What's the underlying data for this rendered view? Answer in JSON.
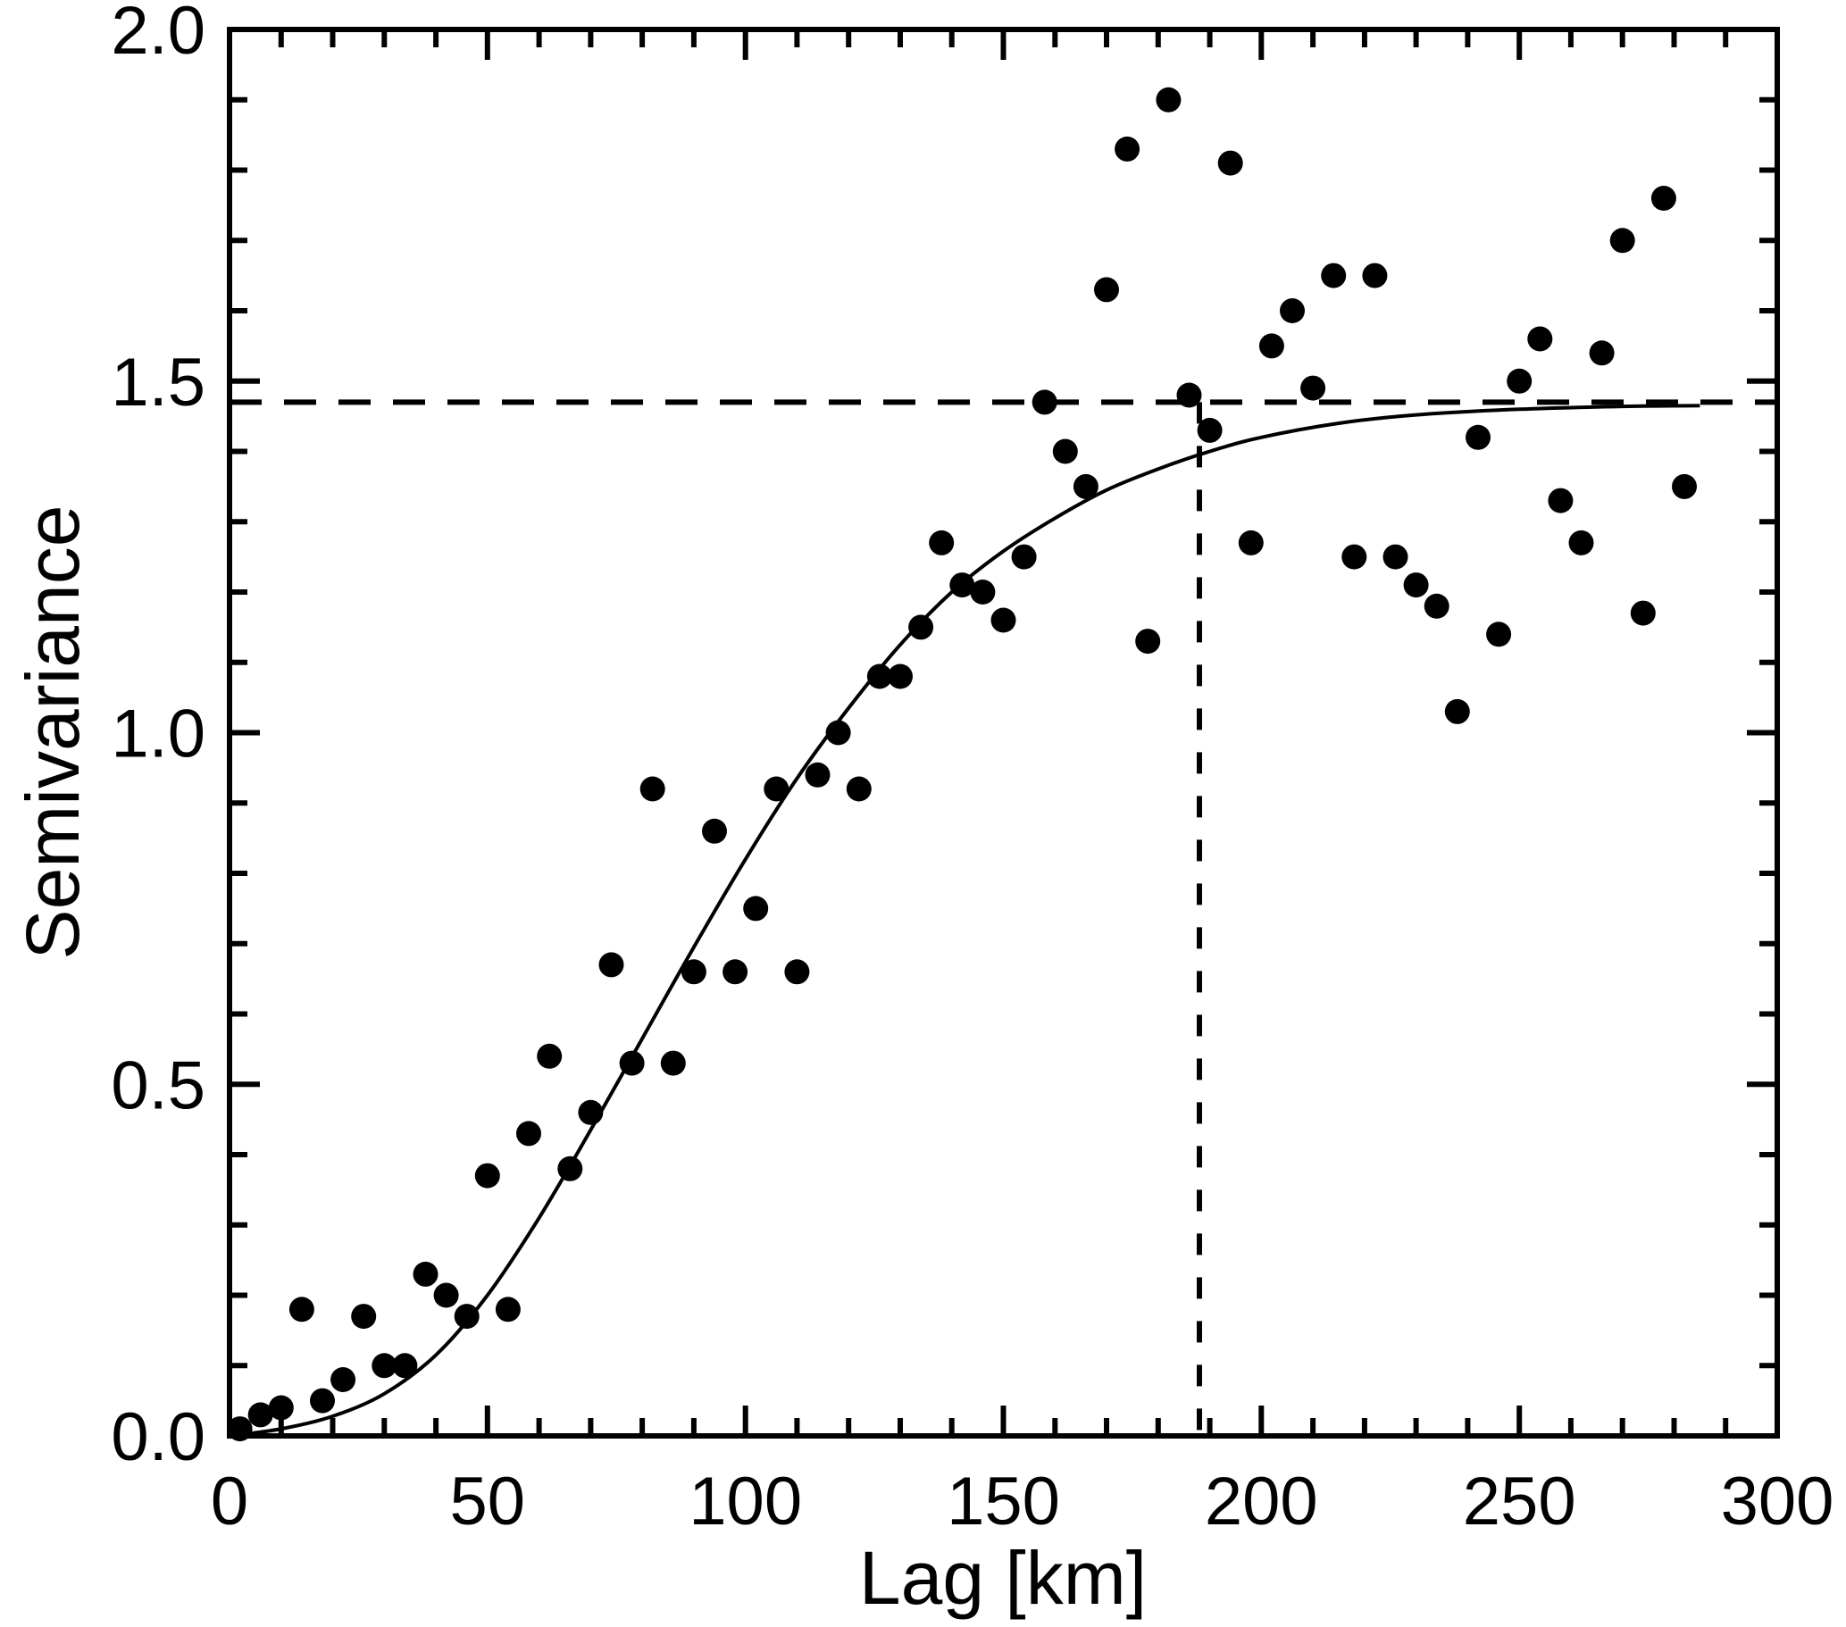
{
  "chart_data": {
    "type": "scatter",
    "title": "",
    "xlabel": "Lag [km]",
    "ylabel": "Semivariance",
    "xlim": [
      0,
      300
    ],
    "ylim": [
      0.0,
      2.0
    ],
    "grid": false,
    "legend": "none",
    "x_major_ticks": [
      0,
      50,
      100,
      150,
      200,
      250,
      300
    ],
    "x_major_tick_labels": [
      "0",
      "50",
      "100",
      "150",
      "200",
      "250",
      "300"
    ],
    "x_minor_step": 10,
    "y_major_ticks": [
      0.0,
      0.5,
      1.0,
      1.5,
      2.0
    ],
    "y_major_tick_labels": [
      "0.0",
      "0.5",
      "1.0",
      "1.5",
      "2.0"
    ],
    "y_minor_step": 0.1,
    "marker": {
      "shape": "filled-circle",
      "radius_px": 14,
      "color": "#000000"
    },
    "colors": {
      "foreground": "#000000",
      "background": "#ffffff"
    },
    "sill": 1.47,
    "range_km": 188,
    "sill_line": {
      "style": "dashed",
      "orientation": "horizontal",
      "value": 1.47
    },
    "range_line": {
      "style": "dashed",
      "orientation": "vertical",
      "value": 188
    },
    "series": [
      {
        "name": "empirical-semivariance",
        "points": [
          [
            2,
            0.01
          ],
          [
            6,
            0.03
          ],
          [
            10,
            0.04
          ],
          [
            14,
            0.18
          ],
          [
            18,
            0.05
          ],
          [
            22,
            0.08
          ],
          [
            26,
            0.17
          ],
          [
            30,
            0.1
          ],
          [
            34,
            0.1
          ],
          [
            38,
            0.23
          ],
          [
            42,
            0.2
          ],
          [
            46,
            0.17
          ],
          [
            50,
            0.37
          ],
          [
            54,
            0.18
          ],
          [
            58,
            0.43
          ],
          [
            62,
            0.54
          ],
          [
            66,
            0.38
          ],
          [
            70,
            0.46
          ],
          [
            74,
            0.67
          ],
          [
            78,
            0.53
          ],
          [
            82,
            0.92
          ],
          [
            86,
            0.53
          ],
          [
            90,
            0.66
          ],
          [
            94,
            0.86
          ],
          [
            98,
            0.66
          ],
          [
            102,
            0.75
          ],
          [
            106,
            0.92
          ],
          [
            110,
            0.66
          ],
          [
            114,
            0.94
          ],
          [
            118,
            1.0
          ],
          [
            122,
            0.92
          ],
          [
            126,
            1.08
          ],
          [
            130,
            1.08
          ],
          [
            134,
            1.15
          ],
          [
            138,
            1.27
          ],
          [
            142,
            1.21
          ],
          [
            146,
            1.2
          ],
          [
            150,
            1.16
          ],
          [
            154,
            1.25
          ],
          [
            158,
            1.47
          ],
          [
            162,
            1.4
          ],
          [
            166,
            1.35
          ],
          [
            170,
            1.63
          ],
          [
            174,
            1.83
          ],
          [
            178,
            1.13
          ],
          [
            182,
            1.9
          ],
          [
            186,
            1.48
          ],
          [
            190,
            1.43
          ],
          [
            194,
            1.81
          ],
          [
            198,
            1.27
          ],
          [
            202,
            1.55
          ],
          [
            206,
            1.6
          ],
          [
            210,
            1.49
          ],
          [
            214,
            1.65
          ],
          [
            218,
            1.25
          ],
          [
            222,
            1.65
          ],
          [
            226,
            1.25
          ],
          [
            230,
            1.21
          ],
          [
            234,
            1.18
          ],
          [
            238,
            1.03
          ],
          [
            242,
            1.42
          ],
          [
            246,
            1.14
          ],
          [
            250,
            1.5
          ],
          [
            254,
            1.56
          ],
          [
            258,
            1.33
          ],
          [
            262,
            1.27
          ],
          [
            266,
            1.54
          ],
          [
            270,
            1.7
          ],
          [
            274,
            1.17
          ],
          [
            278,
            1.76
          ],
          [
            282,
            1.35
          ]
        ]
      }
    ],
    "fit_curve": {
      "name": "model-fit",
      "style": "solid",
      "waypoints": [
        [
          0,
          0.0
        ],
        [
          10,
          0.01
        ],
        [
          20,
          0.028
        ],
        [
          30,
          0.06
        ],
        [
          40,
          0.115
        ],
        [
          50,
          0.2
        ],
        [
          60,
          0.31
        ],
        [
          70,
          0.435
        ],
        [
          80,
          0.565
        ],
        [
          90,
          0.695
        ],
        [
          100,
          0.82
        ],
        [
          110,
          0.935
        ],
        [
          120,
          1.035
        ],
        [
          130,
          1.125
        ],
        [
          140,
          1.2
        ],
        [
          150,
          1.258
        ],
        [
          160,
          1.305
        ],
        [
          170,
          1.345
        ],
        [
          180,
          1.375
        ],
        [
          190,
          1.4
        ],
        [
          200,
          1.42
        ],
        [
          215,
          1.44
        ],
        [
          230,
          1.452
        ],
        [
          250,
          1.46
        ],
        [
          270,
          1.464
        ],
        [
          285,
          1.465
        ]
      ]
    }
  }
}
